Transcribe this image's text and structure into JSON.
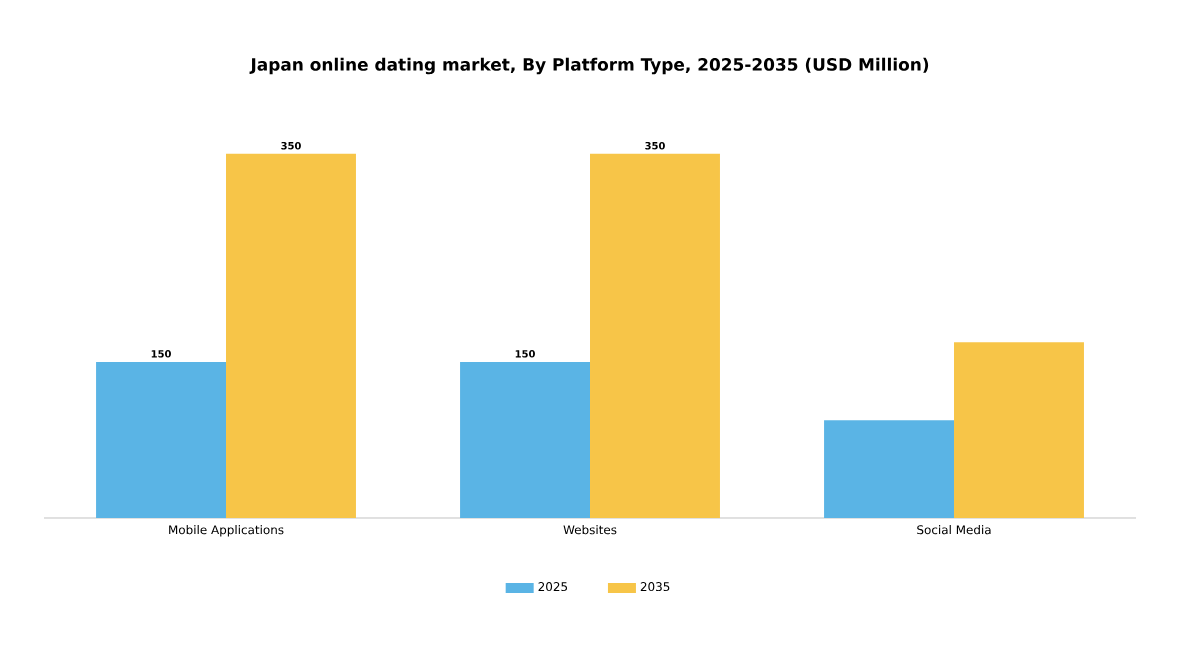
{
  "chart_data": {
    "type": "bar",
    "title": "Japan online dating market, By Platform Type, 2025-2035 (USD Million)",
    "categories": [
      "Mobile Applications",
      "Websites",
      "Social Media"
    ],
    "series": [
      {
        "name": "2025",
        "color": "#5ab4e5",
        "values": [
          150,
          150,
          94
        ],
        "value_labels": [
          "150",
          "150",
          null
        ]
      },
      {
        "name": "2035",
        "color": "#f7c548",
        "values": [
          350,
          350,
          169
        ],
        "value_labels": [
          "350",
          "350",
          null
        ]
      }
    ],
    "legend": "bottom"
  }
}
